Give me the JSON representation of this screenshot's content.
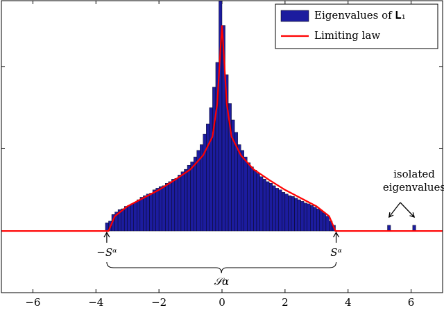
{
  "chart_data": {
    "type": "histogram",
    "xlim": [
      -7,
      7
    ],
    "ylim": [
      -0.75,
      2.8
    ],
    "xticks": [
      {
        "value": -6,
        "label": "−6"
      },
      {
        "value": -4,
        "label": "−4"
      },
      {
        "value": -2,
        "label": "−2"
      },
      0,
      2,
      4,
      6
    ],
    "yticks": [
      0,
      1,
      2
    ],
    "legend": "upper right",
    "series": [
      {
        "name": "Eigenvalues of 𝐋₁",
        "type": "histogram",
        "color": "#1c1c9e",
        "bins": [
          -3.7,
          -3.6,
          -3.5,
          -3.4,
          -3.3,
          -3.2,
          -3.1,
          -3.0,
          -2.9,
          -2.8,
          -2.7,
          -2.6,
          -2.5,
          -2.4,
          -2.3,
          -2.2,
          -2.1,
          -2.0,
          -1.9,
          -1.8,
          -1.7,
          -1.6,
          -1.5,
          -1.4,
          -1.3,
          -1.2,
          -1.1,
          -1.0,
          -0.9,
          -0.8,
          -0.7,
          -0.6,
          -0.5,
          -0.4,
          -0.3,
          -0.2,
          -0.1,
          0.0,
          0.1,
          0.2,
          0.3,
          0.4,
          0.5,
          0.6,
          0.7,
          0.8,
          0.9,
          1.0,
          1.1,
          1.2,
          1.3,
          1.4,
          1.5,
          1.6,
          1.7,
          1.8,
          1.9,
          2.0,
          2.1,
          2.2,
          2.3,
          2.4,
          2.5,
          2.6,
          2.7,
          2.8,
          2.9,
          3.0,
          3.1,
          3.2,
          3.3,
          3.4,
          3.5,
          3.6
        ],
        "values": [
          0.1,
          0.12,
          0.2,
          0.23,
          0.26,
          0.27,
          0.3,
          0.31,
          0.33,
          0.35,
          0.38,
          0.41,
          0.43,
          0.45,
          0.46,
          0.5,
          0.52,
          0.54,
          0.55,
          0.58,
          0.6,
          0.63,
          0.64,
          0.68,
          0.72,
          0.75,
          0.8,
          0.84,
          0.9,
          0.98,
          1.05,
          1.18,
          1.3,
          1.5,
          1.75,
          2.05,
          2.8,
          2.5,
          1.9,
          1.55,
          1.35,
          1.2,
          1.05,
          0.98,
          0.9,
          0.83,
          0.78,
          0.74,
          0.7,
          0.66,
          0.63,
          0.6,
          0.58,
          0.55,
          0.52,
          0.5,
          0.47,
          0.45,
          0.43,
          0.42,
          0.4,
          0.38,
          0.36,
          0.34,
          0.33,
          0.31,
          0.29,
          0.27,
          0.25,
          0.22,
          0.18,
          0.12,
          0.07
        ],
        "isolated_x": [
          5.3,
          6.1
        ],
        "isolated_values": [
          0.07,
          0.07
        ]
      },
      {
        "name": "Limiting law",
        "type": "line",
        "color": "#ff0000",
        "x": [
          -7,
          -3.6,
          -3.4,
          -3,
          -2.5,
          -2,
          -1.5,
          -1,
          -0.6,
          -0.3,
          -0.15,
          -0.05,
          0,
          0.05,
          0.15,
          0.3,
          0.6,
          1,
          1.5,
          2,
          2.5,
          3,
          3.4,
          3.6,
          7
        ],
        "values": [
          0,
          0,
          0.18,
          0.3,
          0.4,
          0.5,
          0.62,
          0.75,
          0.92,
          1.15,
          1.55,
          2.2,
          2.5,
          2.2,
          1.55,
          1.15,
          0.92,
          0.75,
          0.62,
          0.5,
          0.4,
          0.3,
          0.18,
          0,
          0
        ]
      }
    ],
    "annotations": {
      "left_edge": "−Sᵅ",
      "right_edge": "Sᵅ",
      "support": "𝒮α",
      "isolated_line1": "isolated",
      "isolated_line2": "eigenvalues"
    }
  }
}
